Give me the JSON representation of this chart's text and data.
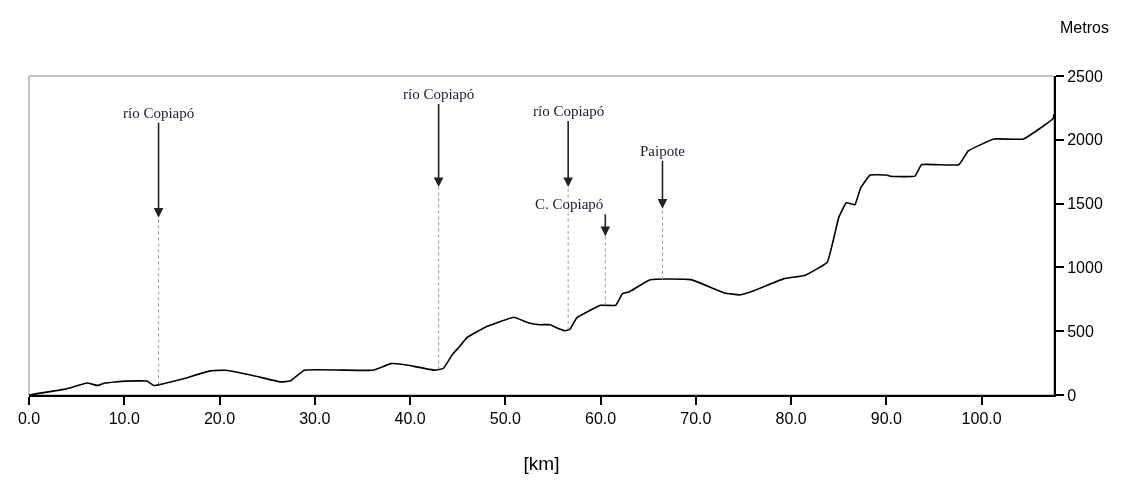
{
  "chart_data": {
    "type": "line",
    "xlabel": "[km]",
    "ylabel": "Metros",
    "xlim": [
      0,
      107.6
    ],
    "ylim": [
      0,
      2500
    ],
    "xticks": [
      {
        "value": 0,
        "label": "0.0"
      },
      {
        "value": 10,
        "label": "10.0"
      },
      {
        "value": 20,
        "label": "20.0"
      },
      {
        "value": 30,
        "label": "30.0"
      },
      {
        "value": 40,
        "label": "40.0"
      },
      {
        "value": 50,
        "label": "50.0"
      },
      {
        "value": 60,
        "label": "60.0"
      },
      {
        "value": 70,
        "label": "70.0"
      },
      {
        "value": 80,
        "label": "80.0"
      },
      {
        "value": 90,
        "label": "90.0"
      },
      {
        "value": 100,
        "label": "100.0"
      }
    ],
    "yticks": [
      0,
      500,
      1000,
      1500,
      2000,
      2500
    ],
    "marker": "none",
    "line_style": "solid",
    "x": [
      0,
      3.8,
      6.1,
      7.2,
      8.0,
      10.1,
      12.4,
      13.1,
      16.0,
      19.0,
      20.7,
      23.6,
      26.4,
      27.4,
      28.9,
      36.1,
      38.0,
      39.5,
      42.6,
      43.5,
      44.5,
      45.2,
      46.0,
      47.9,
      50.9,
      52.4,
      53.6,
      54.7,
      55.7,
      56.3,
      56.8,
      57.5,
      60.0,
      61.6,
      62.3,
      63.0,
      65.2,
      69.5,
      73.0,
      74.6,
      76.1,
      79.2,
      81.5,
      83.8,
      85.0,
      85.8,
      86.7,
      87.3,
      88.3,
      90.0,
      90.4,
      93.0,
      93.7,
      97.6,
      98.6,
      101.3,
      104.4,
      107.5,
      107.6
    ],
    "series": [
      {
        "color": "#000000",
        "values": [
          0,
          46,
          94,
          74,
          94,
          109,
          109,
          74,
          123,
          189,
          194,
          151,
          103,
          109,
          194,
          194,
          246,
          237,
          194,
          209,
          323,
          380,
          451,
          531,
          609,
          566,
          551,
          551,
          517,
          503,
          517,
          605,
          703,
          703,
          794,
          808,
          904,
          904,
          800,
          785,
          817,
          910,
          939,
          1041,
          1390,
          1506,
          1491,
          1622,
          1724,
          1724,
          1715,
          1715,
          1805,
          1805,
          1913,
          2006,
          2006,
          2166,
          2200
        ]
      }
    ],
    "ref_lines": [
      {
        "axis": "x",
        "value": 13.6,
        "label": "río Copiapó",
        "color": "#9a9a9a",
        "line_style": "dotted"
      },
      {
        "axis": "x",
        "value": 43.0,
        "label": "río Copiapó",
        "color": "#9a9a9a",
        "line_style": "dotted"
      },
      {
        "axis": "x",
        "value": 56.6,
        "label": "río Copiapó",
        "color": "#9a9a9a",
        "line_style": "dotted"
      },
      {
        "axis": "x",
        "value": 60.5,
        "label": "C. Copiapó",
        "color": "#9a9a9a",
        "line_style": "dotted"
      },
      {
        "axis": "x",
        "value": 66.5,
        "label": "Paipote",
        "color": "#9a9a9a",
        "line_style": "dotted"
      }
    ]
  }
}
